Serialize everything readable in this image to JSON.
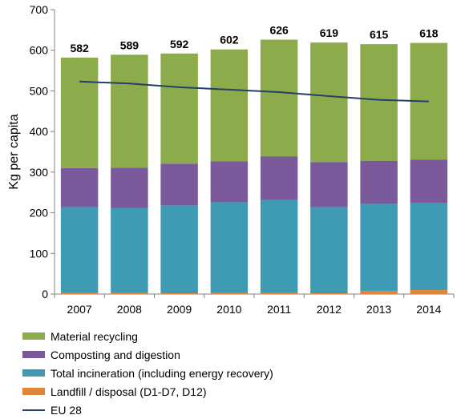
{
  "chart_data": {
    "type": "bar",
    "stacked": true,
    "categories": [
      "2007",
      "2008",
      "2009",
      "2010",
      "2011",
      "2012",
      "2013",
      "2014"
    ],
    "series": [
      {
        "name": "Landfill / disposal (D1-D7, D12)",
        "color": "#e0863b",
        "values": [
          3,
          3,
          2,
          3,
          3,
          2,
          8,
          10
        ]
      },
      {
        "name": "Total incineration (including energy recovery)",
        "color": "#3f9ab3",
        "values": [
          211,
          209,
          216,
          223,
          228,
          212,
          214,
          214
        ]
      },
      {
        "name": "Composting and digestion",
        "color": "#7b5a9b",
        "values": [
          96,
          99,
          103,
          101,
          108,
          111,
          106,
          107
        ]
      },
      {
        "name": "Material recycling",
        "color": "#8cac4b",
        "values": [
          272,
          278,
          271,
          275,
          287,
          294,
          287,
          287
        ]
      }
    ],
    "totals": [
      "582",
      "589",
      "592",
      "602",
      "626",
      "619",
      "615",
      "618"
    ],
    "line": {
      "name": "EU 28",
      "color": "#243f69",
      "values": [
        523,
        518,
        509,
        503,
        497,
        487,
        478,
        474
      ]
    },
    "ylabel": "Kg per capita",
    "xlabel": "",
    "ylim": [
      0,
      700
    ],
    "yticks": [
      "0",
      "100",
      "200",
      "300",
      "400",
      "500",
      "600",
      "700"
    ],
    "grid": false,
    "legend_position": "bottom"
  },
  "legend": [
    {
      "label": "Material recycling",
      "color": "#8cac4b",
      "kind": "box"
    },
    {
      "label": "Composting and digestion",
      "color": "#7b5a9b",
      "kind": "box"
    },
    {
      "label": "Total incineration (including energy recovery)",
      "color": "#3f9ab3",
      "kind": "box"
    },
    {
      "label": "Landfill / disposal (D1-D7, D12)",
      "color": "#e0863b",
      "kind": "box"
    },
    {
      "label": "EU 28",
      "color": "#243f69",
      "kind": "line"
    }
  ]
}
